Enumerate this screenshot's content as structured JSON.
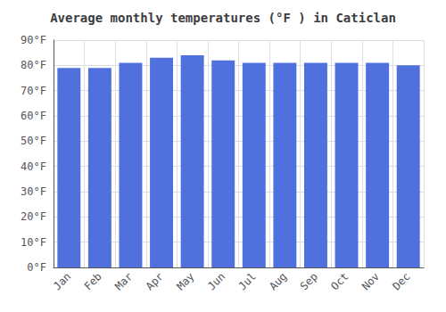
{
  "chart_data": {
    "type": "bar",
    "title": "Average monthly temperatures (°F ) in Caticlan",
    "categories": [
      "Jan",
      "Feb",
      "Mar",
      "Apr",
      "May",
      "Jun",
      "Jul",
      "Aug",
      "Sep",
      "Oct",
      "Nov",
      "Dec"
    ],
    "values": [
      79,
      79,
      81,
      83,
      84,
      82,
      81,
      81,
      81,
      81,
      81,
      80
    ],
    "ylim": [
      0,
      90
    ],
    "yticks": [
      {
        "value": 0,
        "label": "0°F"
      },
      {
        "value": 10,
        "label": "10°F"
      },
      {
        "value": 20,
        "label": "20°F"
      },
      {
        "value": 30,
        "label": "30°F"
      },
      {
        "value": 40,
        "label": "40°F"
      },
      {
        "value": 50,
        "label": "50°F"
      },
      {
        "value": 60,
        "label": "60°F"
      },
      {
        "value": 70,
        "label": "70°F"
      },
      {
        "value": 80,
        "label": "80°F"
      },
      {
        "value": 90,
        "label": "90°F"
      }
    ],
    "grid": true
  }
}
